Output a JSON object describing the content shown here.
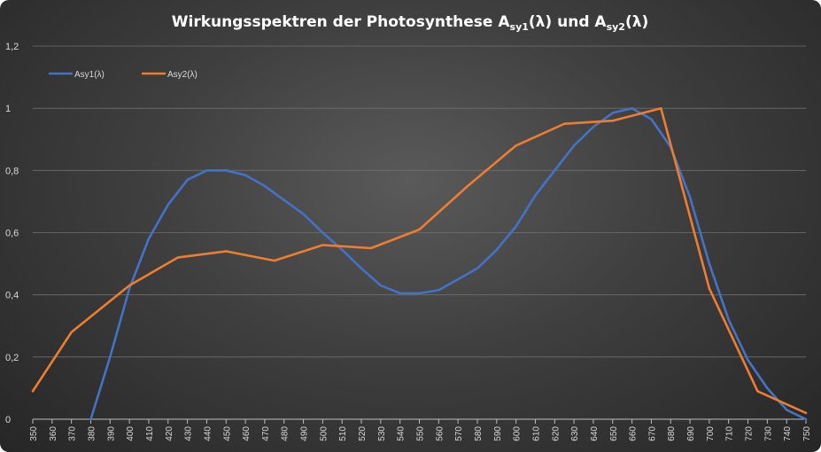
{
  "chart_data": {
    "type": "line",
    "title": {
      "prefix": "Wirkungsspektren der Photosynthese ",
      "a1_base": "A",
      "a1_sub": "sy1",
      "a1_suffix": "(λ)",
      "join": " und ",
      "a2_base": "A",
      "a2_sub": "sy2",
      "a2_suffix": "(λ)"
    },
    "xlabel": "",
    "ylabel": "",
    "ylim": [
      0,
      1.2
    ],
    "y_ticks": [
      0,
      0.2,
      0.4,
      0.6,
      0.8,
      1,
      1.2
    ],
    "y_tick_labels": [
      "0",
      "0,2",
      "0,4",
      "0,6",
      "0,8",
      "1",
      "1,2"
    ],
    "x": [
      350,
      360,
      370,
      380,
      390,
      400,
      410,
      420,
      430,
      440,
      450,
      460,
      470,
      480,
      490,
      500,
      510,
      520,
      530,
      540,
      550,
      560,
      570,
      580,
      590,
      600,
      610,
      620,
      630,
      640,
      650,
      660,
      670,
      680,
      690,
      700,
      710,
      720,
      730,
      740,
      750
    ],
    "grid": true,
    "legend_position": "top-left",
    "series": [
      {
        "name": "Asy1(λ)",
        "color": "#4472c4",
        "points": [
          [
            380,
            0
          ],
          [
            390,
            0.2
          ],
          [
            400,
            0.42
          ],
          [
            410,
            0.58
          ],
          [
            420,
            0.69
          ],
          [
            430,
            0.77
          ],
          [
            440,
            0.8
          ],
          [
            450,
            0.8
          ],
          [
            460,
            0.785
          ],
          [
            470,
            0.75
          ],
          [
            480,
            0.705
          ],
          [
            490,
            0.66
          ],
          [
            500,
            0.6
          ],
          [
            510,
            0.545
          ],
          [
            520,
            0.485
          ],
          [
            530,
            0.43
          ],
          [
            540,
            0.405
          ],
          [
            550,
            0.405
          ],
          [
            560,
            0.415
          ],
          [
            570,
            0.45
          ],
          [
            580,
            0.485
          ],
          [
            590,
            0.545
          ],
          [
            600,
            0.62
          ],
          [
            610,
            0.72
          ],
          [
            620,
            0.8
          ],
          [
            630,
            0.88
          ],
          [
            640,
            0.94
          ],
          [
            650,
            0.985
          ],
          [
            660,
            1.0
          ],
          [
            670,
            0.965
          ],
          [
            680,
            0.875
          ],
          [
            690,
            0.715
          ],
          [
            700,
            0.5
          ],
          [
            710,
            0.32
          ],
          [
            720,
            0.19
          ],
          [
            730,
            0.1
          ],
          [
            740,
            0.03
          ],
          [
            750,
            0.0
          ]
        ]
      },
      {
        "name": "Asy2(λ)",
        "color": "#ed7d31",
        "points": [
          [
            350,
            0.09
          ],
          [
            370,
            0.28
          ],
          [
            400,
            0.43
          ],
          [
            425,
            0.52
          ],
          [
            450,
            0.54
          ],
          [
            475,
            0.51
          ],
          [
            500,
            0.56
          ],
          [
            525,
            0.55
          ],
          [
            550,
            0.61
          ],
          [
            575,
            0.75
          ],
          [
            600,
            0.88
          ],
          [
            625,
            0.95
          ],
          [
            650,
            0.96
          ],
          [
            675,
            1.0
          ],
          [
            700,
            0.42
          ],
          [
            725,
            0.09
          ],
          [
            750,
            0.02
          ]
        ]
      }
    ]
  }
}
